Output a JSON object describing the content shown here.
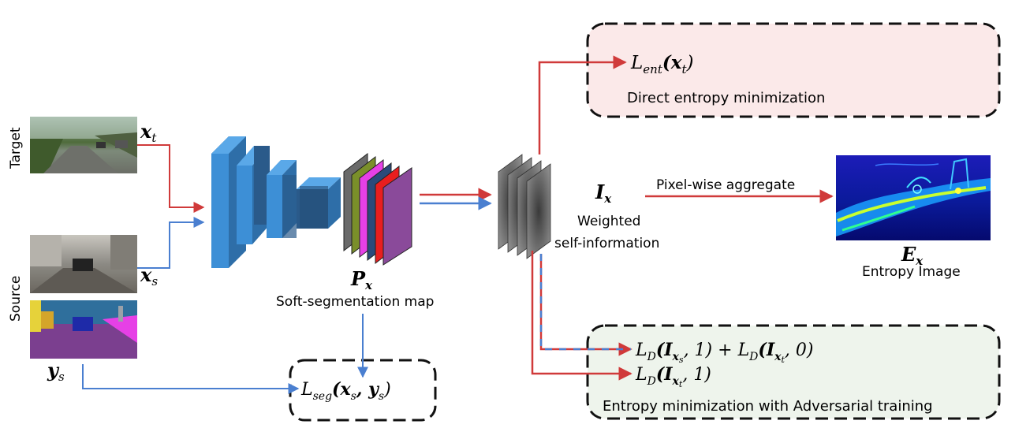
{
  "side_labels": {
    "target": "Target",
    "source": "Source"
  },
  "inputs": {
    "x_t": {
      "base": "x",
      "sub": "t"
    },
    "x_s": {
      "base": "x",
      "sub": "s"
    },
    "y_s": {
      "base": "y",
      "sub": "s"
    }
  },
  "network": {
    "output_symbol": {
      "base": "P",
      "sub": "x"
    },
    "output_label": "Soft-segmentation map"
  },
  "self_info": {
    "symbol": {
      "base": "I",
      "sub": "x"
    },
    "label_line1": "Weighted",
    "label_line2": "self-information"
  },
  "aggregate": {
    "arrow_label": "Pixel-wise aggregate",
    "symbol": {
      "base": "E",
      "sub": "x"
    },
    "label": "Entropy Image"
  },
  "losses": {
    "ent": {
      "L": "L",
      "sub": "ent",
      "arg": "(x",
      "argsub": "t",
      "close": ")"
    },
    "ent_caption": "Direct entropy minimization",
    "seg": {
      "L": "L",
      "sub": "seg",
      "arg": "(x",
      "argsub": "s",
      "mid": ", y",
      "argsub2": "s",
      "close": ")"
    },
    "adv1": {
      "L": "L",
      "sub": "D",
      "part1": "(I",
      "x1": "x",
      "s1": "s",
      "tail1": ", 1) + ",
      "L2": "L",
      "sub2": "D",
      "part2": "(I",
      "x2": "x",
      "s2": "t",
      "tail2": ", 0)"
    },
    "adv2": {
      "L": "L",
      "sub": "D",
      "part": "(I",
      "x": "x",
      "s": "t",
      "tail": ", 1)"
    },
    "adv_caption": "Entropy minimization with Adversarial training"
  },
  "colors": {
    "red": "#d03a3a",
    "blue": "#4a7fd0",
    "network_blue": "#3d8fd6",
    "pink_box": "#fbe9e9",
    "green_box": "#eef4ec"
  }
}
